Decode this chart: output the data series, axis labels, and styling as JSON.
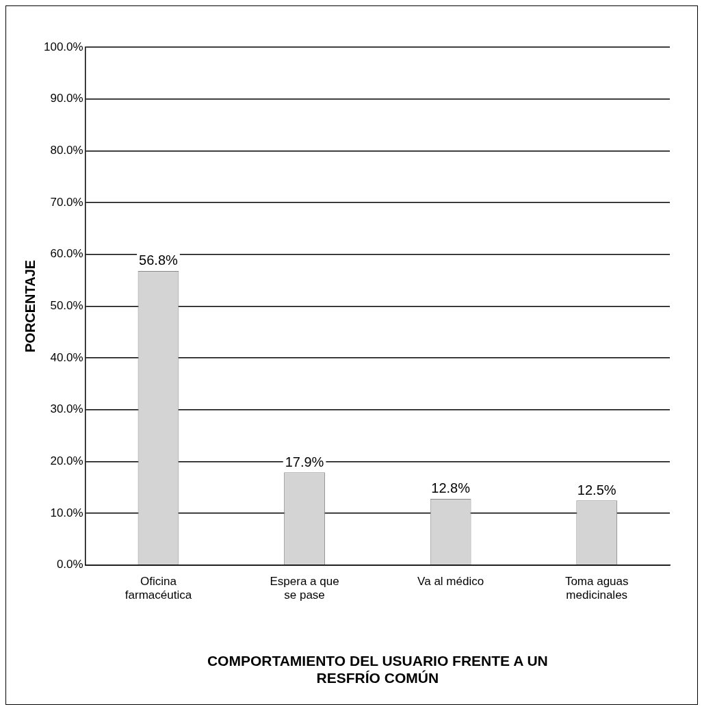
{
  "chart_data": {
    "type": "bar",
    "xlabel": "COMPORTAMIENTO DEL USUARIO FRENTE A UN RESFRÍO COMÚN",
    "ylabel": "PORCENTAJE",
    "categories": [
      "Oficina farmacéutica",
      "Espera a que se pase",
      "Va al médico",
      "Toma aguas medicinales"
    ],
    "values": [
      56.8,
      17.9,
      12.8,
      12.5
    ],
    "color": "#d4d4d4",
    "value_labels": [
      "56.8%",
      "17.9%",
      "12.8%",
      "12.5%"
    ],
    "ylim": [
      0,
      100
    ],
    "yticks": [
      {
        "value": 0,
        "label": "0.0%"
      },
      {
        "value": 10,
        "label": "10.0%"
      },
      {
        "value": 20,
        "label": "20.0%"
      },
      {
        "value": 30,
        "label": "30.0%"
      },
      {
        "value": 40,
        "label": "40.0%"
      },
      {
        "value": 50,
        "label": "50.0%"
      },
      {
        "value": 60,
        "label": "60.0%"
      },
      {
        "value": 70,
        "label": "70.0%"
      },
      {
        "value": 80,
        "label": "80.0%"
      },
      {
        "value": 90,
        "label": "90.0%"
      },
      {
        "value": 100,
        "label": "100.0%"
      }
    ],
    "grid": "y",
    "legend": false
  }
}
